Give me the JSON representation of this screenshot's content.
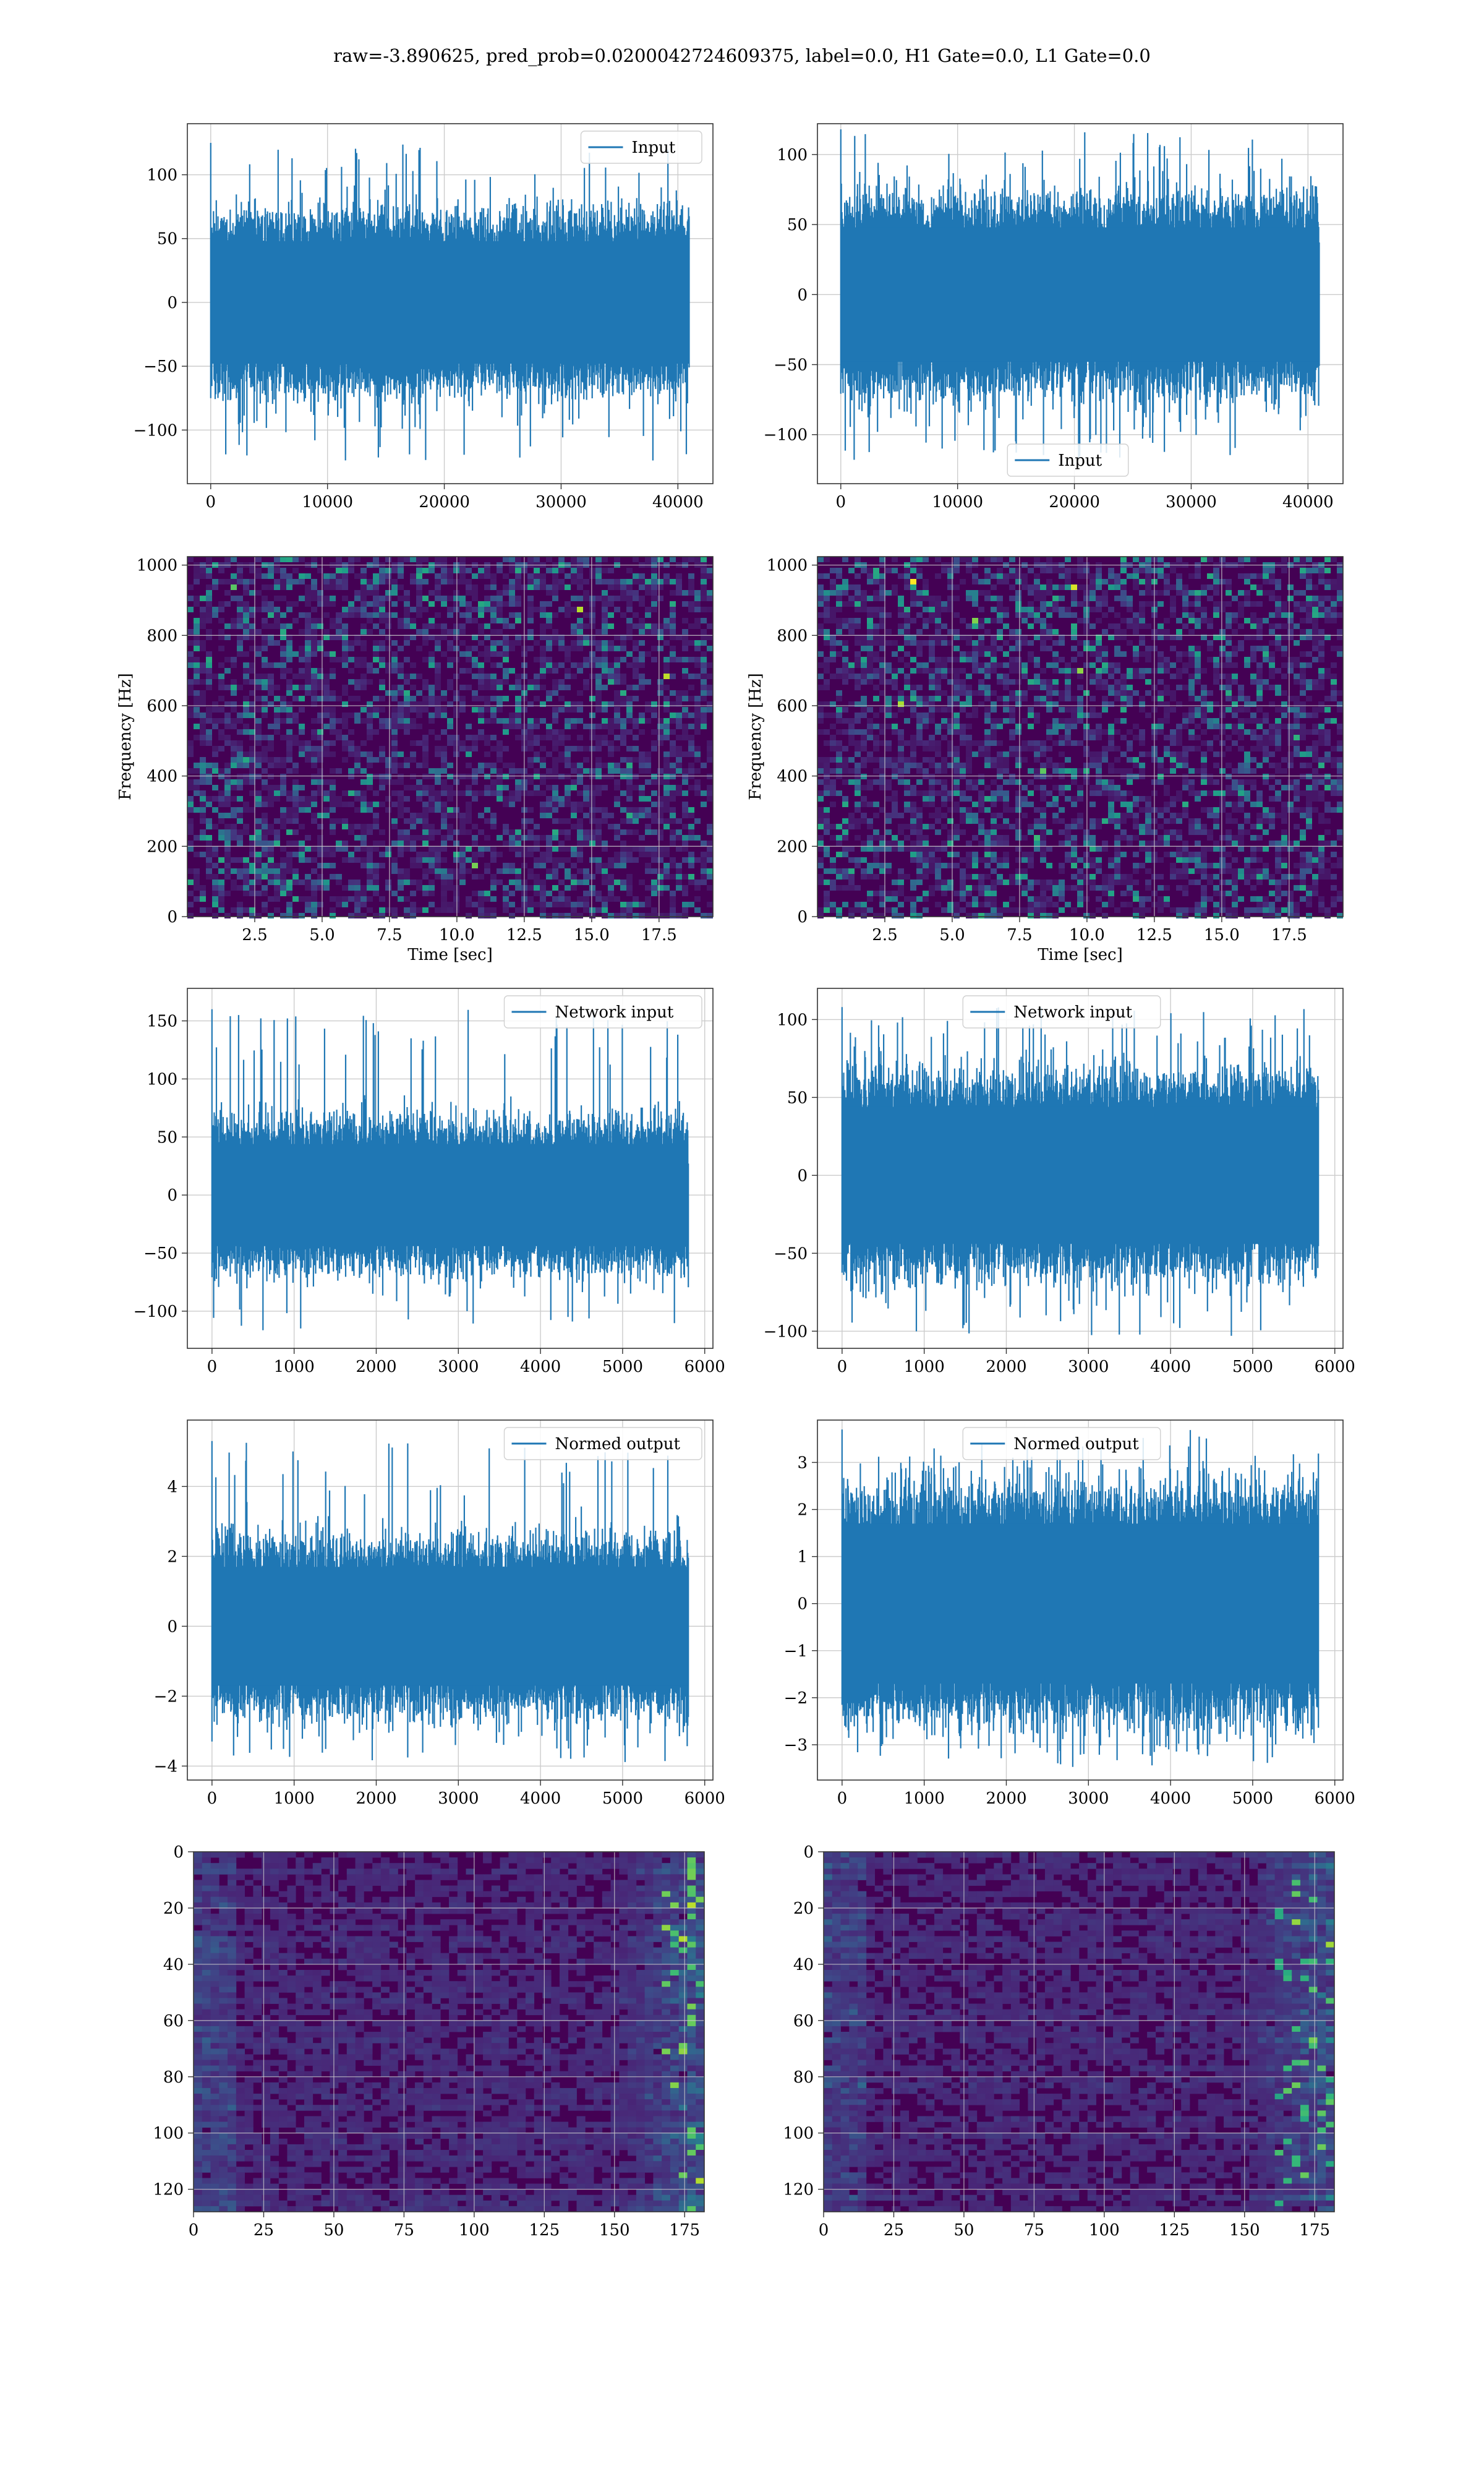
{
  "figure": {
    "title": "raw=-3.890625, pred_prob=0.0200042724609375, label=0.0, H1 Gate=0.0, L1 Gate=0.0",
    "colors": {
      "line": "#1f77b4",
      "grid": "#cccccc",
      "axes": "#333333",
      "text": "#000000",
      "viridis_dark": "#440154"
    }
  },
  "chart_data": [
    {
      "type": "line",
      "id": "h1-input",
      "title": "",
      "xlabel": "",
      "ylabel": "",
      "series": [
        {
          "name": "Input",
          "n_points": 40960,
          "amplitude_std": 24,
          "values_range": [
            -125,
            125
          ]
        }
      ],
      "xlim": [
        -2000,
        43000
      ],
      "ylim": [
        -142,
        140
      ],
      "xticks": [
        "0",
        "10000",
        "20000",
        "30000",
        "40000"
      ],
      "yticks": [
        "100",
        "50",
        "0",
        "−50",
        "−100"
      ],
      "legend": "top-right",
      "grid": true
    },
    {
      "type": "line",
      "id": "l1-input",
      "title": "",
      "xlabel": "",
      "ylabel": "",
      "series": [
        {
          "name": "Input",
          "n_points": 40960,
          "amplitude_std": 24,
          "values_range": [
            -118,
            118
          ]
        }
      ],
      "xlim": [
        -2000,
        43000
      ],
      "ylim": [
        -135,
        122
      ],
      "xticks": [
        "0",
        "10000",
        "20000",
        "30000",
        "40000"
      ],
      "yticks": [
        "100",
        "50",
        "0",
        "−50",
        "−100"
      ],
      "legend": "bottom-center",
      "grid": true
    },
    {
      "type": "heatmap",
      "id": "h1-spectrogram",
      "title": "",
      "xlabel": "Time [sec]",
      "ylabel": "Frequency [Hz]",
      "xlim": [
        0,
        19.5
      ],
      "ylim": [
        0,
        1024
      ],
      "xticks": [
        "2.5",
        "5.0",
        "7.5",
        "10.0",
        "12.5",
        "15.0",
        "17.5"
      ],
      "yticks": [
        "1000",
        "800",
        "600",
        "400",
        "200",
        "0"
      ],
      "colormap": "viridis",
      "grid": true
    },
    {
      "type": "heatmap",
      "id": "l1-spectrogram",
      "title": "",
      "xlabel": "Time [sec]",
      "ylabel": "Frequency [Hz]",
      "xlim": [
        0,
        19.5
      ],
      "ylim": [
        0,
        1024
      ],
      "xticks": [
        "2.5",
        "5.0",
        "7.5",
        "10.0",
        "12.5",
        "15.0",
        "17.5"
      ],
      "yticks": [
        "1000",
        "800",
        "600",
        "400",
        "200",
        "0"
      ],
      "colormap": "viridis",
      "grid": true
    },
    {
      "type": "line",
      "id": "h1-network-input",
      "title": "",
      "xlabel": "",
      "ylabel": "",
      "series": [
        {
          "name": "Network input",
          "n_points": 5800,
          "amplitude_std": 22,
          "values_range": [
            -118,
            160
          ]
        }
      ],
      "xlim": [
        -300,
        6100
      ],
      "ylim": [
        -132,
        178
      ],
      "xticks": [
        "0",
        "1000",
        "2000",
        "3000",
        "4000",
        "5000",
        "6000"
      ],
      "yticks": [
        "150",
        "100",
        "50",
        "0",
        "−50",
        "−100"
      ],
      "legend": "top-right",
      "grid": true
    },
    {
      "type": "line",
      "id": "l1-network-input",
      "title": "",
      "xlabel": "",
      "ylabel": "",
      "series": [
        {
          "name": "Network input",
          "n_points": 5800,
          "amplitude_std": 22,
          "values_range": [
            -104,
            108
          ]
        }
      ],
      "xlim": [
        -300,
        6100
      ],
      "ylim": [
        -111,
        120
      ],
      "xticks": [
        "0",
        "1000",
        "2000",
        "3000",
        "4000",
        "5000",
        "6000"
      ],
      "yticks": [
        "100",
        "50",
        "0",
        "−50",
        "−100"
      ],
      "legend": "top-center",
      "grid": true
    },
    {
      "type": "line",
      "id": "h1-normed-output",
      "title": "",
      "xlabel": "",
      "ylabel": "",
      "series": [
        {
          "name": "Normed output",
          "n_points": 5800,
          "amplitude_std": 0.85,
          "values_range": [
            -3.9,
            5.3
          ]
        }
      ],
      "xlim": [
        -300,
        6100
      ],
      "ylim": [
        -4.4,
        5.9
      ],
      "xticks": [
        "0",
        "1000",
        "2000",
        "3000",
        "4000",
        "5000",
        "6000"
      ],
      "yticks": [
        "4",
        "2",
        "0",
        "−2",
        "−4"
      ],
      "legend": "top-right",
      "grid": true
    },
    {
      "type": "line",
      "id": "l1-normed-output",
      "title": "",
      "xlabel": "",
      "ylabel": "",
      "series": [
        {
          "name": "Normed output",
          "n_points": 5800,
          "amplitude_std": 0.85,
          "values_range": [
            -3.5,
            3.7
          ]
        }
      ],
      "xlim": [
        -300,
        6100
      ],
      "ylim": [
        -3.75,
        3.9
      ],
      "xticks": [
        "0",
        "1000",
        "2000",
        "3000",
        "4000",
        "5000",
        "6000"
      ],
      "yticks": [
        "3",
        "2",
        "1",
        "0",
        "−1",
        "−2",
        "−3"
      ],
      "legend": "top-center",
      "grid": true
    },
    {
      "type": "heatmap",
      "id": "h1-feature-map",
      "title": "",
      "xlabel": "",
      "ylabel": "",
      "xlim": [
        0,
        182
      ],
      "ylim": [
        128,
        0
      ],
      "rows": 128,
      "cols": 182,
      "xticks": [
        "0",
        "25",
        "50",
        "75",
        "100",
        "125",
        "150",
        "175"
      ],
      "yticks": [
        "0",
        "20",
        "40",
        "60",
        "80",
        "100",
        "120"
      ],
      "colormap": "viridis",
      "grid": true
    },
    {
      "type": "heatmap",
      "id": "l1-feature-map",
      "title": "",
      "xlabel": "",
      "ylabel": "",
      "xlim": [
        0,
        182
      ],
      "ylim": [
        128,
        0
      ],
      "rows": 128,
      "cols": 182,
      "xticks": [
        "0",
        "25",
        "50",
        "75",
        "100",
        "125",
        "150",
        "175"
      ],
      "yticks": [
        "0",
        "20",
        "40",
        "60",
        "80",
        "100",
        "120"
      ],
      "colormap": "viridis",
      "grid": true
    }
  ]
}
